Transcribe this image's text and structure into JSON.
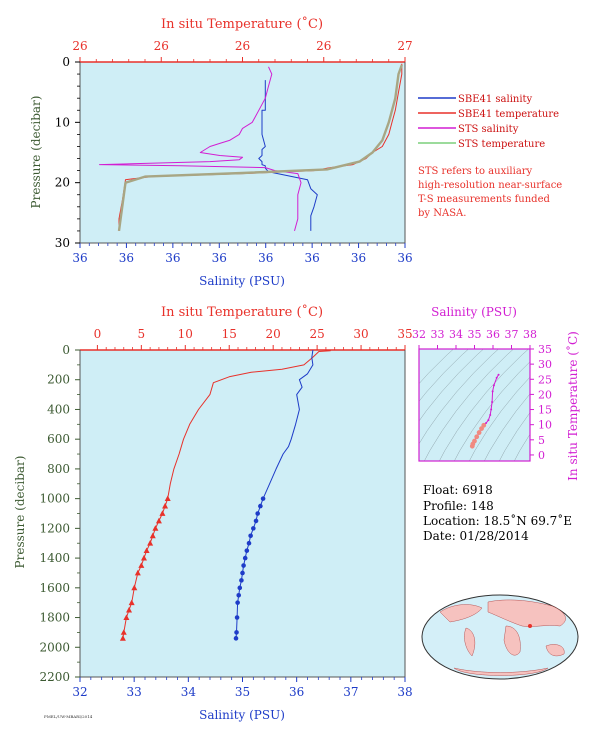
{
  "colors": {
    "plot_bg": "#cfeef6",
    "red": "#e8312a",
    "blue": "#1e3cc8",
    "magenta": "#d21ed2",
    "olive": "#a8a684",
    "green": "#7ccf7c",
    "dark_green": "#3c5a32",
    "legend_red": "#cc1111",
    "black": "#000000",
    "land": "#f6c2bf"
  },
  "top_chart": {
    "title": "In situ Temperature (˚C)",
    "top_ticks": [
      "26",
      "26",
      "26",
      "26",
      "27"
    ],
    "ylabel": "Pressure (decibar)",
    "y_ticks": [
      "0",
      "10",
      "20",
      "30"
    ],
    "bottom_ticks": [
      "36",
      "36",
      "36",
      "36",
      "36",
      "36",
      "36",
      "36"
    ],
    "xlabel": "Salinity (PSU)"
  },
  "legend": {
    "items": [
      {
        "label": "SBE41 salinity",
        "color": "#1e3cc8"
      },
      {
        "label": "SBE41 temperature",
        "color": "#e8312a"
      },
      {
        "label": "STS salinity",
        "color": "#d21ed2"
      },
      {
        "label": "STS temperature",
        "color": "#7ccf7c"
      }
    ],
    "note_lines": [
      "STS refers to auxiliary",
      "high-resolution near-surface",
      "T-S measurements funded",
      "by NASA."
    ]
  },
  "main_chart": {
    "title": "In situ Temperature (˚C)",
    "top_ticks": [
      "0",
      "5",
      "10",
      "15",
      "20",
      "25",
      "30",
      "35"
    ],
    "ylabel": "Pressure (decibar)",
    "y_ticks": [
      "0",
      "200",
      "400",
      "600",
      "800",
      "1000",
      "1200",
      "1400",
      "1600",
      "1800",
      "2000",
      "2200"
    ],
    "bottom_ticks": [
      "32",
      "33",
      "34",
      "35",
      "36",
      "37",
      "38"
    ],
    "xlabel": "Salinity (PSU)"
  },
  "ts_chart": {
    "title": "Salinity (PSU)",
    "top_ticks": [
      "32",
      "33",
      "34",
      "35",
      "36",
      "37",
      "38"
    ],
    "right_ticks": [
      "35",
      "30",
      "25",
      "20",
      "15",
      "10",
      "5",
      "0"
    ],
    "ylabel": "In situ Temperature (˚C)"
  },
  "info": {
    "float": "Float:  6918",
    "profile": "Profile:  148",
    "location": "Location:  18.5˚N  69.7˚E",
    "date": "Date:  01/28/2014"
  },
  "footer_tiny": "PMEL/UW-MBARI/2014",
  "chart_data": [
    {
      "type": "line",
      "name": "near-surface profile",
      "y_range_decibar": [
        0,
        30
      ],
      "top_axis": "temperature",
      "bottom_axis": "salinity",
      "series": [
        {
          "name": "SBE41 salinity",
          "axis": "bottom",
          "x": [
            0.57,
            0.57,
            0.57,
            0.56,
            0.56,
            0.56,
            0.57,
            0.56,
            0.56,
            0.56,
            0.55,
            0.56,
            0.56,
            0.57,
            0.57,
            0.58,
            0.7,
            0.71,
            0.73,
            0.72,
            0.71,
            0.71,
            0.71
          ],
          "y": [
            3,
            5,
            8,
            8,
            10,
            12,
            14,
            14.5,
            15,
            15.5,
            16,
            16.5,
            17,
            17.2,
            17.6,
            18.2,
            19.5,
            21,
            22,
            24,
            25.5,
            27,
            28
          ]
        },
        {
          "name": "SBE41 temperature",
          "axis": "top",
          "x": [
            0.12,
            0.12,
            0.13,
            0.14,
            0.22,
            0.5,
            0.72,
            0.77,
            0.84,
            0.88,
            0.9,
            0.93,
            0.95,
            0.96,
            0.97,
            0.98,
            0.99,
            0.99
          ],
          "y": [
            28,
            26,
            23,
            19.5,
            19.0,
            18.5,
            18.0,
            17.5,
            17.0,
            16.0,
            15.0,
            14.0,
            12.0,
            10.0,
            8.0,
            5.0,
            2.0,
            0.3
          ]
        },
        {
          "name": "STS salinity",
          "axis": "bottom",
          "x": [
            0.58,
            0.59,
            0.58,
            0.57,
            0.55,
            0.53,
            0.5,
            0.49,
            0.46,
            0.43,
            0.4,
            0.37,
            0.43,
            0.5,
            0.49,
            0.4,
            0.2,
            0.06,
            0.31,
            0.57,
            0.6,
            0.67,
            0.68,
            0.67,
            0.67,
            0.67,
            0.66
          ],
          "y": [
            0.8,
            2,
            4,
            6,
            8,
            10,
            11,
            12,
            13,
            13.5,
            14,
            15,
            15.5,
            15.8,
            16.2,
            16.5,
            16.8,
            17,
            17.2,
            17.5,
            18,
            18.5,
            20,
            22,
            24,
            26,
            28
          ]
        },
        {
          "name": "STS temperature",
          "axis": "top",
          "x": [
            0.12,
            0.14,
            0.2,
            0.5,
            0.76,
            0.86,
            0.9,
            0.93,
            0.95,
            0.97,
            0.98,
            0.99
          ],
          "y": [
            28,
            20,
            19,
            18.4,
            17.8,
            16.5,
            15,
            13,
            10,
            6,
            2,
            0.5
          ]
        }
      ]
    },
    {
      "type": "line",
      "name": "full profile",
      "y_range_decibar": [
        0,
        2200
      ],
      "xlim_salinity": [
        32,
        38
      ],
      "xlim_temperature": [
        0,
        35
      ],
      "series": [
        {
          "name": "SBE41 temperature",
          "axis": "temperature",
          "x": [
            26.5,
            26.5,
            25.2,
            24.5,
            23.5,
            21.0,
            17.5,
            15.0,
            13.2,
            12.8,
            11.5,
            10.5,
            9.8,
            9.3,
            8.7,
            8.3,
            8.0,
            7.7,
            7.4,
            7.0,
            6.6,
            6.3,
            6.0,
            5.6,
            5.3,
            5.0,
            4.6,
            4.2,
            3.9,
            3.6,
            3.3,
            3.0,
            2.9
          ],
          "y": [
            0,
            5,
            10,
            50,
            100,
            130,
            150,
            180,
            220,
            300,
            400,
            500,
            600,
            700,
            800,
            900,
            1000,
            1050,
            1100,
            1150,
            1200,
            1250,
            1300,
            1350,
            1400,
            1450,
            1500,
            1600,
            1700,
            1750,
            1800,
            1900,
            1940
          ]
        },
        {
          "name": "SBE41 salinity",
          "axis": "salinity",
          "x": [
            36.3,
            36.28,
            36.3,
            36.2,
            36.05,
            36.1,
            36.0,
            36.05,
            35.98,
            35.9,
            35.85,
            35.75,
            35.62,
            35.5,
            35.38,
            35.33,
            35.28,
            35.25,
            35.2,
            35.15,
            35.12,
            35.08,
            35.05,
            35.02,
            35.0,
            34.98,
            34.95,
            34.93,
            34.91,
            34.9,
            34.89,
            34.88
          ],
          "y": [
            0,
            50,
            100,
            160,
            200,
            250,
            300,
            400,
            500,
            600,
            650,
            700,
            800,
            900,
            1000,
            1050,
            1100,
            1150,
            1200,
            1250,
            1300,
            1350,
            1400,
            1450,
            1500,
            1550,
            1600,
            1650,
            1700,
            1800,
            1900,
            1940
          ]
        },
        {
          "name": "SBE41 temperature samples",
          "axis": "temperature",
          "marker": "triangle",
          "x": [
            8.0,
            7.7,
            7.4,
            7.0,
            6.6,
            6.3,
            6.0,
            5.6,
            5.3,
            5.0,
            4.6,
            4.2,
            3.9,
            3.6,
            3.3,
            3.0,
            2.9
          ],
          "y": [
            1000,
            1050,
            1100,
            1150,
            1200,
            1250,
            1300,
            1350,
            1400,
            1450,
            1500,
            1600,
            1700,
            1750,
            1800,
            1900,
            1940
          ]
        },
        {
          "name": "SBE41 salinity samples",
          "axis": "salinity",
          "marker": "circle",
          "x": [
            35.38,
            35.33,
            35.28,
            35.25,
            35.2,
            35.15,
            35.12,
            35.08,
            35.05,
            35.02,
            35.0,
            34.98,
            34.95,
            34.93,
            34.91,
            34.9,
            34.89,
            34.88
          ],
          "y": [
            1000,
            1050,
            1100,
            1150,
            1200,
            1250,
            1300,
            1350,
            1400,
            1450,
            1500,
            1550,
            1600,
            1650,
            1700,
            1800,
            1900,
            1940
          ]
        }
      ]
    },
    {
      "type": "scatter",
      "name": "T-S diagram",
      "xlim": [
        32,
        38
      ],
      "ylim": [
        -2,
        35
      ],
      "series": [
        {
          "name": "T-S",
          "x": [
            36.3,
            36.2,
            36.05,
            35.98,
            35.95,
            35.9,
            35.85,
            35.75,
            35.62,
            35.5,
            35.38,
            35.25,
            35.12,
            35.0,
            34.91,
            34.88
          ],
          "y": [
            26.5,
            25.5,
            23.0,
            21.0,
            17.5,
            15.0,
            13.2,
            11.5,
            10.5,
            9.8,
            8.7,
            7.4,
            6.0,
            4.6,
            3.6,
            2.9
          ]
        }
      ]
    }
  ]
}
